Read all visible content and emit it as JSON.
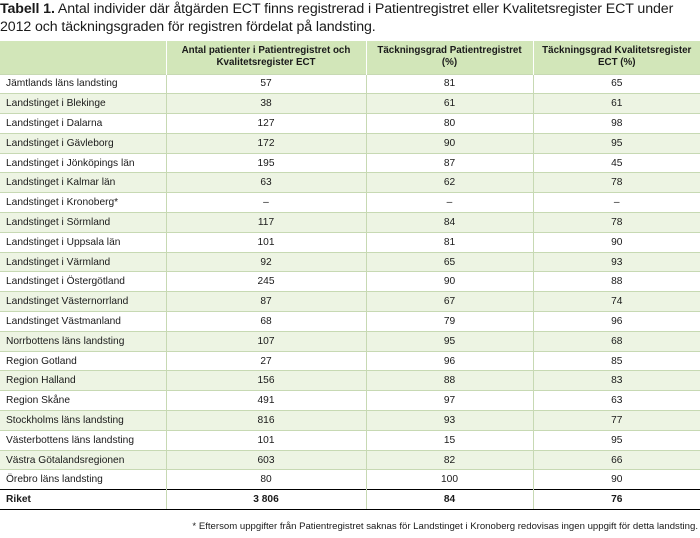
{
  "caption": {
    "label": "Tabell 1.",
    "text": " Antal individer där åtgärden ECT finns registrerad i Patientregistret eller Kvalitetsregister ECT under 2012 och täckningsgraden för registren fördelat på landsting."
  },
  "table": {
    "headers": [
      "",
      "Antal patienter i Patientregistret och Kvalitetsregister ECT",
      "Täckningsgrad Patientregistret (%)",
      "Täckningsgrad Kvalitetsregister ECT (%)"
    ],
    "rows": [
      [
        "Jämtlands läns landsting",
        "57",
        "81",
        "65"
      ],
      [
        "Landstinget i Blekinge",
        "38",
        "61",
        "61"
      ],
      [
        "Landstinget i Dalarna",
        "127",
        "80",
        "98"
      ],
      [
        "Landstinget i Gävleborg",
        "172",
        "90",
        "95"
      ],
      [
        "Landstinget i Jönköpings län",
        "195",
        "87",
        "45"
      ],
      [
        "Landstinget i Kalmar län",
        "63",
        "62",
        "78"
      ],
      [
        "Landstinget i Kronoberg*",
        "–",
        "–",
        "–"
      ],
      [
        "Landstinget i Sörmland",
        "117",
        "84",
        "78"
      ],
      [
        "Landstinget i Uppsala län",
        "101",
        "81",
        "90"
      ],
      [
        "Landstinget i Värmland",
        "92",
        "65",
        "93"
      ],
      [
        "Landstinget i Östergötland",
        "245",
        "90",
        "88"
      ],
      [
        "Landstinget Västernorrland",
        "87",
        "67",
        "74"
      ],
      [
        "Landstinget Västmanland",
        "68",
        "79",
        "96"
      ],
      [
        "Norrbottens läns landsting",
        "107",
        "95",
        "68"
      ],
      [
        "Region Gotland",
        "27",
        "96",
        "85"
      ],
      [
        "Region Halland",
        "156",
        "88",
        "83"
      ],
      [
        "Region Skåne",
        "491",
        "97",
        "63"
      ],
      [
        "Stockholms läns landsting",
        "816",
        "93",
        "77"
      ],
      [
        "Västerbottens läns landsting",
        "101",
        "15",
        "95"
      ],
      [
        "Västra Götalandsregionen",
        "603",
        "82",
        "66"
      ],
      [
        "Örebro läns landsting",
        "80",
        "100",
        "90"
      ]
    ],
    "total": [
      "Riket",
      "3 806",
      "84",
      "76"
    ]
  },
  "footnote": "* Eftersom uppgifter från Patientregistret saknas för Landstinget i Kronoberg redovisas ingen uppgift för detta landsting.",
  "colors": {
    "header_bg": "#d2e6b9",
    "stripe_bg": "#edf4e3",
    "rule": "#c7d9b3"
  }
}
